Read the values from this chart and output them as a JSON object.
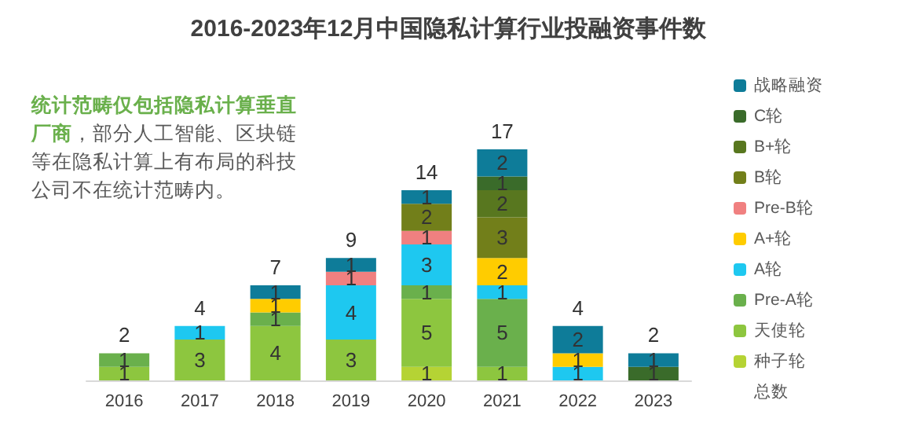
{
  "chart_data": {
    "type": "bar",
    "title": "2016-2023年12月中国隐私计算行业投融资事件数",
    "stacked": true,
    "data_labels": true,
    "legend": "right",
    "tick_labels": "x",
    "categories": [
      "2016",
      "2017",
      "2018",
      "2019",
      "2020",
      "2021",
      "2022",
      "2023"
    ],
    "series": [
      {
        "name": "种子轮",
        "color": "#b5d334",
        "values": [
          null,
          null,
          null,
          null,
          1,
          null,
          null,
          null
        ]
      },
      {
        "name": "天使轮",
        "color": "#8dc63f",
        "values": [
          1,
          3,
          4,
          3,
          5,
          1,
          null,
          null
        ]
      },
      {
        "name": "Pre-A轮",
        "color": "#6ab04c",
        "values": [
          1,
          null,
          1,
          null,
          1,
          5,
          null,
          null
        ]
      },
      {
        "name": "A轮",
        "color": "#1ec8f0",
        "values": [
          null,
          1,
          null,
          4,
          3,
          1,
          1,
          null
        ]
      },
      {
        "name": "A+轮",
        "color": "#ffcc00",
        "values": [
          null,
          null,
          1,
          null,
          null,
          2,
          1,
          null
        ]
      },
      {
        "name": "Pre-B轮",
        "color": "#f08080",
        "values": [
          null,
          null,
          null,
          1,
          1,
          null,
          null,
          null
        ]
      },
      {
        "name": "B轮",
        "color": "#727f1a",
        "values": [
          null,
          null,
          null,
          null,
          2,
          3,
          null,
          null
        ]
      },
      {
        "name": "B+轮",
        "color": "#58771f",
        "values": [
          null,
          null,
          null,
          null,
          null,
          2,
          null,
          null
        ]
      },
      {
        "name": "C轮",
        "color": "#3a6b2a",
        "values": [
          null,
          null,
          null,
          null,
          null,
          1,
          null,
          1
        ]
      },
      {
        "name": "战略融资",
        "color": "#0e7c99",
        "values": [
          null,
          null,
          1,
          1,
          1,
          2,
          2,
          1
        ]
      }
    ],
    "totals": [
      "2",
      "4",
      "7",
      "9",
      "14",
      "17",
      "4",
      "2"
    ],
    "annotations": [
      "总数",
      "统计范畴仅包括隐私计算垂直厂商",
      "，部分人工智能、区块链等在隐私计算上有布局的科技公司不在统计范畴内。"
    ]
  }
}
